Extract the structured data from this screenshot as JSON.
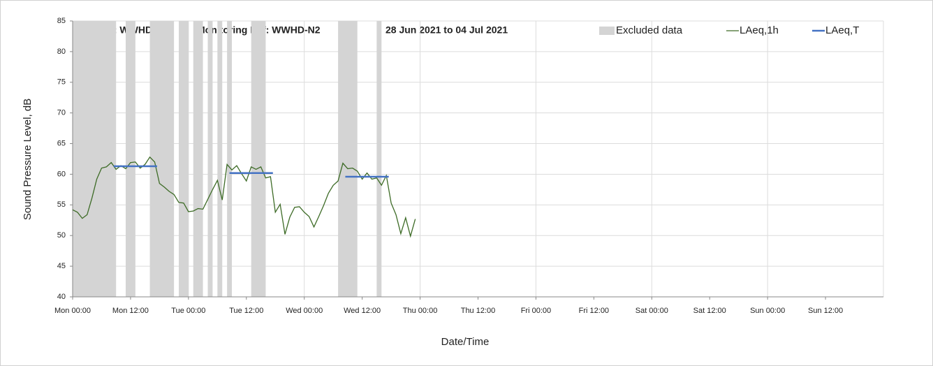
{
  "chart_data": {
    "type": "line",
    "title_parts": [
      "Worksite: WWHD",
      "Monitoring Ref: WWHD-N2",
      "28 Jun 2021 to 04 Jul 2021"
    ],
    "xlabel": "Date/Time",
    "ylabel": "Sound Pressure Level, dB",
    "xlim": [
      0,
      168
    ],
    "ylim": [
      40,
      85
    ],
    "yticks": [
      40,
      45,
      50,
      55,
      60,
      65,
      70,
      75,
      80,
      85
    ],
    "xticks": [
      {
        "value": 0,
        "label": "Mon 00:00"
      },
      {
        "value": 12,
        "label": "Mon 12:00"
      },
      {
        "value": 24,
        "label": "Tue 00:00"
      },
      {
        "value": 36,
        "label": "Tue 12:00"
      },
      {
        "value": 48,
        "label": "Wed 00:00"
      },
      {
        "value": 60,
        "label": "Wed 12:00"
      },
      {
        "value": 72,
        "label": "Thu 00:00"
      },
      {
        "value": 84,
        "label": "Thu 12:00"
      },
      {
        "value": 96,
        "label": "Fri 00:00"
      },
      {
        "value": 108,
        "label": "Fri 12:00"
      },
      {
        "value": 120,
        "label": "Sat 00:00"
      },
      {
        "value": 132,
        "label": "Sat 12:00"
      },
      {
        "value": 144,
        "label": "Sun 00:00"
      },
      {
        "value": 156,
        "label": "Sun 12:00"
      }
    ],
    "xgrid": [
      24,
      48,
      72,
      96,
      120,
      144,
      168
    ],
    "grid": true,
    "excluded": {
      "name": "Excluded data",
      "color": "#d4d4d4",
      "ranges": [
        [
          0,
          9
        ],
        [
          11,
          13
        ],
        [
          16,
          21
        ],
        [
          22,
          24
        ],
        [
          25,
          27
        ],
        [
          28,
          29
        ],
        [
          30,
          31
        ],
        [
          32,
          33
        ],
        [
          37,
          40
        ],
        [
          55,
          59
        ],
        [
          63,
          64
        ]
      ]
    },
    "series": [
      {
        "name": "LAeq,1h",
        "color": "#3d6b26",
        "x": [
          0,
          1,
          2,
          3,
          4,
          5,
          6,
          7,
          8,
          9,
          10,
          11,
          12,
          13,
          14,
          15,
          16,
          17,
          18,
          19,
          20,
          21,
          22,
          23,
          24,
          25,
          26,
          27,
          28,
          29,
          30,
          31,
          32,
          33,
          34,
          35,
          36,
          37,
          38,
          39,
          40,
          41,
          42,
          43,
          44,
          45,
          46,
          47,
          48,
          49,
          50,
          51,
          52,
          53,
          54,
          55,
          56,
          57,
          58,
          59,
          60,
          61,
          62,
          63,
          64,
          65,
          66,
          67,
          68,
          69,
          70,
          71
        ],
        "values": [
          54.2,
          53.8,
          52.8,
          53.4,
          56.1,
          59.2,
          61.0,
          61.2,
          61.9,
          60.8,
          61.4,
          60.9,
          61.9,
          62.0,
          61.0,
          61.6,
          62.8,
          62.0,
          58.5,
          57.9,
          57.2,
          56.7,
          55.4,
          55.3,
          53.9,
          54.0,
          54.4,
          54.3,
          55.9,
          57.5,
          59.0,
          55.8,
          61.6,
          60.7,
          61.4,
          60.1,
          58.9,
          61.2,
          60.8,
          61.2,
          59.4,
          59.6,
          53.8,
          55.1,
          50.2,
          53.0,
          54.6,
          54.7,
          53.8,
          53.1,
          51.4,
          53.1,
          54.9,
          56.9,
          58.2,
          58.9,
          61.8,
          60.9,
          61.0,
          60.5,
          59.2,
          60.2,
          59.2,
          59.4,
          58.2,
          59.8,
          55.3,
          53.4,
          50.3,
          52.9,
          49.9,
          52.7
        ]
      },
      {
        "name": "LAeq,T",
        "color": "#4472c4",
        "segments": [
          {
            "x": [
              8.5,
              17.5
            ],
            "value": 61.3
          },
          {
            "x": [
              32.5,
              41.5
            ],
            "value": 60.2
          },
          {
            "x": [
              56.5,
              65.5
            ],
            "value": 59.6
          }
        ]
      }
    ]
  }
}
